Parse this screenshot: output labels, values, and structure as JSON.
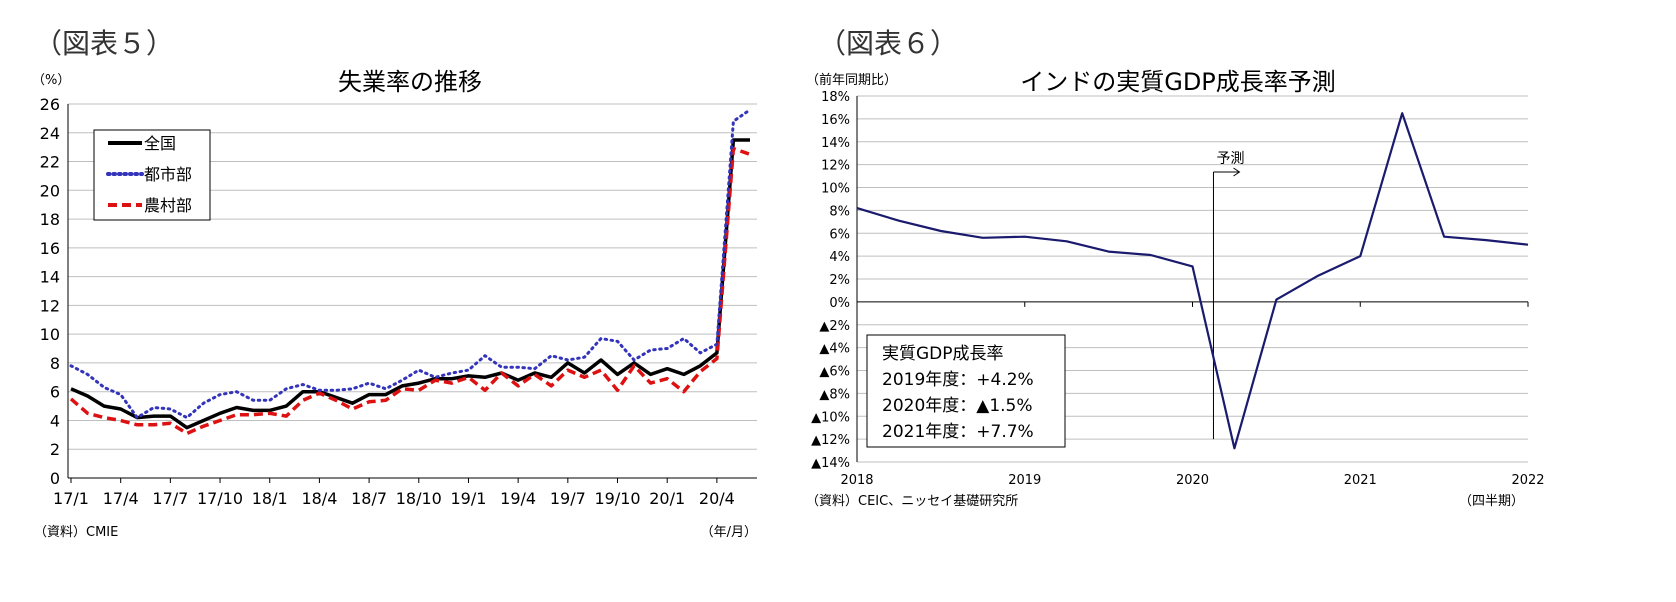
{
  "figures": [
    {
      "label": "（図表５）"
    },
    {
      "label": "（図表６）"
    }
  ],
  "chart_data": [
    {
      "type": "line",
      "title": "失業率の推移",
      "ylabel": "（%）",
      "xlabel": "（年/月）",
      "source": "（資料）CMIE",
      "ylim": [
        0,
        26
      ],
      "yticks": [
        "0",
        "2",
        "4",
        "6",
        "8",
        "10",
        "12",
        "14",
        "16",
        "18",
        "20",
        "22",
        "24",
        "26"
      ],
      "xticks": [
        "17/1",
        "17/4",
        "17/7",
        "17/10",
        "18/1",
        "18/4",
        "18/7",
        "18/10",
        "19/1",
        "19/4",
        "19/7",
        "19/10",
        "20/1",
        "20/4"
      ],
      "x_start": "2017-01",
      "grid": true,
      "legend_position": "top-left",
      "series": [
        {
          "name": "全国",
          "color": "#000000",
          "style": "solid",
          "values": [
            6.2,
            5.7,
            5.0,
            4.8,
            4.2,
            4.3,
            4.3,
            3.5,
            4.0,
            4.5,
            4.9,
            4.7,
            4.7,
            5.0,
            6.0,
            6.0,
            5.6,
            5.2,
            5.8,
            5.8,
            6.4,
            6.6,
            6.9,
            6.9,
            7.1,
            7.0,
            7.3,
            6.8,
            7.3,
            7.0,
            8.0,
            7.3,
            8.2,
            7.2,
            8.0,
            7.2,
            7.6,
            7.2,
            7.8,
            8.7,
            23.5,
            23.5
          ]
        },
        {
          "name": "都市部",
          "color": "#3333bb",
          "style": "dotted",
          "values": [
            7.8,
            7.2,
            6.3,
            5.8,
            4.2,
            4.9,
            4.8,
            4.2,
            5.2,
            5.8,
            6.0,
            5.4,
            5.4,
            6.2,
            6.5,
            6.1,
            6.1,
            6.2,
            6.6,
            6.2,
            6.8,
            7.5,
            7.0,
            7.3,
            7.5,
            8.5,
            7.7,
            7.7,
            7.6,
            8.5,
            8.2,
            8.4,
            9.7,
            9.5,
            8.2,
            8.9,
            9.0,
            9.7,
            8.7,
            9.3,
            24.8,
            25.6
          ]
        },
        {
          "name": "農村部",
          "color": "#dd1111",
          "style": "dashed",
          "values": [
            5.5,
            4.5,
            4.2,
            4.0,
            3.7,
            3.7,
            3.8,
            3.1,
            3.6,
            4.0,
            4.4,
            4.4,
            4.5,
            4.3,
            5.4,
            5.9,
            5.4,
            4.8,
            5.3,
            5.4,
            6.2,
            6.1,
            6.8,
            6.6,
            7.0,
            6.1,
            7.3,
            6.4,
            7.2,
            6.4,
            7.5,
            7.0,
            7.5,
            6.1,
            7.8,
            6.6,
            6.9,
            6.0,
            7.4,
            8.3,
            22.9,
            22.5
          ]
        }
      ]
    },
    {
      "type": "line",
      "title": "インドの実質GDP成長率予測",
      "ylabel": "（前年同期比）",
      "xlabel": "（四半期）",
      "source": "（資料）CEIC、ニッセイ基礎研究所",
      "ylim": [
        -14,
        18
      ],
      "yticks": [
        18,
        16,
        14,
        12,
        10,
        8,
        6,
        4,
        2,
        0,
        -2,
        -4,
        -6,
        -8,
        -10,
        -12,
        -14
      ],
      "xticks": [
        "2018",
        "2019",
        "2020",
        "2021",
        "2022"
      ],
      "grid": true,
      "series": [
        {
          "name": "",
          "color": "#1a1a6e",
          "x": [
            "2018Q1",
            "2018Q2",
            "2018Q3",
            "2018Q4",
            "2019Q1",
            "2019Q2",
            "2019Q3",
            "2019Q4",
            "2020Q1",
            "2020Q2",
            "2020Q3",
            "2020Q4",
            "2021Q1",
            "2021Q2",
            "2021Q3",
            "2021Q4",
            "2022Q1"
          ],
          "values": [
            8.2,
            7.1,
            6.2,
            5.6,
            5.7,
            5.3,
            4.4,
            4.1,
            3.1,
            -12.8,
            0.2,
            2.3,
            4.0,
            16.5,
            5.7,
            5.4,
            5.0
          ]
        }
      ],
      "annotation": {
        "text": "予測",
        "x": "2020Q2"
      },
      "textbox": [
        "実質GDP成長率",
        "2019年度：+4.2%",
        "2020年度：▲1.5%",
        "2021年度：+7.7%"
      ]
    }
  ]
}
